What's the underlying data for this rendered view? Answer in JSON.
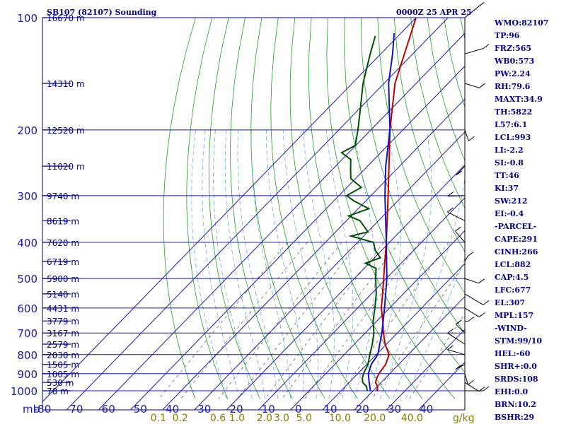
{
  "header": {
    "station": "SB107 (82107) Sounding",
    "time": "0000Z 25 APR 25"
  },
  "chart_data": {
    "type": "line",
    "title": "SB107 (82107) Sounding",
    "subtitle": "0000Z 25 APR 25",
    "xlabel": "",
    "ylabel": "mb",
    "pressure_levels": [
      100,
      200,
      300,
      400,
      500,
      600,
      700,
      800,
      900,
      1000
    ],
    "pressure_tick_labels": [
      "100",
      "200",
      "300",
      "400",
      "500",
      "600",
      "700",
      "800",
      "900",
      "1000"
    ],
    "pressure_axis_unit": "mb",
    "temperature_ticks": [
      -80,
      -70,
      -60,
      -50,
      -40,
      -30,
      -20,
      -10,
      0,
      10,
      20,
      30,
      40
    ],
    "temperature_tick_labels": [
      "-80",
      "-70",
      "-60",
      "-50",
      "-40",
      "-30",
      "-20",
      "-10",
      "0",
      "10",
      "20",
      "30",
      "40"
    ],
    "height_labels": [
      {
        "p": 100,
        "label": "16670 m"
      },
      {
        "p": 150,
        "label": "14310 m"
      },
      {
        "p": 200,
        "label": "12520 m"
      },
      {
        "p": 250,
        "label": "11020 m"
      },
      {
        "p": 300,
        "label": "9740 m"
      },
      {
        "p": 350,
        "label": "8619 m"
      },
      {
        "p": 400,
        "label": "7620 m"
      },
      {
        "p": 450,
        "label": "6719 m"
      },
      {
        "p": 500,
        "label": "5900 m"
      },
      {
        "p": 550,
        "label": "5140 m"
      },
      {
        "p": 600,
        "label": "4431 m"
      },
      {
        "p": 650,
        "label": "3779 m"
      },
      {
        "p": 700,
        "label": "3167 m"
      },
      {
        "p": 750,
        "label": "2579 m"
      },
      {
        "p": 800,
        "label": "2030 m"
      },
      {
        "p": 850,
        "label": "1505 m"
      },
      {
        "p": 900,
        "label": "1005 m"
      },
      {
        "p": 950,
        "label": "530 m"
      },
      {
        "p": 1000,
        "label": "78 m"
      }
    ],
    "mixing_ratio_labels": [
      "0.1",
      "0.2",
      "0.6",
      "1.0",
      "2.0",
      "3.0",
      "5.0",
      "10.0",
      "20.0",
      "40.0"
    ],
    "mixing_ratio_unit": "g/kg",
    "series": [
      {
        "color": "#c00000",
        "points": [
          {
            "p": 1000,
            "t": 24.5
          },
          {
            "p": 975,
            "t": 23.5
          },
          {
            "p": 950,
            "t": 21.5
          },
          {
            "p": 925,
            "t": 20.5
          },
          {
            "p": 900,
            "t": 19.8
          },
          {
            "p": 850,
            "t": 19.0
          },
          {
            "p": 800,
            "t": 17.0
          },
          {
            "p": 750,
            "t": 12.5
          },
          {
            "p": 700,
            "t": 8.5
          },
          {
            "p": 650,
            "t": 4.5
          },
          {
            "p": 600,
            "t": 0.0
          },
          {
            "p": 550,
            "t": -4.0
          },
          {
            "p": 500,
            "t": -8.5
          },
          {
            "p": 450,
            "t": -13.5
          },
          {
            "p": 400,
            "t": -19.0
          },
          {
            "p": 350,
            "t": -25.5
          },
          {
            "p": 300,
            "t": -33.0
          },
          {
            "p": 250,
            "t": -42.0
          },
          {
            "p": 200,
            "t": -53.0
          },
          {
            "p": 150,
            "t": -66.0
          },
          {
            "p": 100,
            "t": -80.0
          }
        ]
      },
      {
        "color": "#005000",
        "points": [
          {
            "p": 1000,
            "t": 21.5
          },
          {
            "p": 975,
            "t": 20.0
          },
          {
            "p": 950,
            "t": 17.5
          },
          {
            "p": 925,
            "t": 16.0
          },
          {
            "p": 900,
            "t": 15.0
          },
          {
            "p": 850,
            "t": 13.5
          },
          {
            "p": 800,
            "t": 11.0
          },
          {
            "p": 750,
            "t": 8.5
          },
          {
            "p": 700,
            "t": 5.5
          },
          {
            "p": 650,
            "t": 1.5
          },
          {
            "p": 600,
            "t": -2.0
          },
          {
            "p": 550,
            "t": -6.0
          },
          {
            "p": 500,
            "t": -11.0
          },
          {
            "p": 470,
            "t": -14.0
          },
          {
            "p": 455,
            "t": -19.0
          },
          {
            "p": 440,
            "t": -16.0
          },
          {
            "p": 420,
            "t": -20.0
          },
          {
            "p": 400,
            "t": -23.0
          },
          {
            "p": 385,
            "t": -32.0
          },
          {
            "p": 375,
            "t": -28.0
          },
          {
            "p": 350,
            "t": -34.0
          },
          {
            "p": 340,
            "t": -39.0
          },
          {
            "p": 325,
            "t": -35.0
          },
          {
            "p": 310,
            "t": -42.0
          },
          {
            "p": 300,
            "t": -46.0
          },
          {
            "p": 285,
            "t": -44.0
          },
          {
            "p": 270,
            "t": -50.0
          },
          {
            "p": 255,
            "t": -53.0
          },
          {
            "p": 240,
            "t": -56.0
          },
          {
            "p": 230,
            "t": -61.0
          },
          {
            "p": 220,
            "t": -59.0
          },
          {
            "p": 200,
            "t": -63.0
          },
          {
            "p": 175,
            "t": -69.0
          },
          {
            "p": 150,
            "t": -76.0
          },
          {
            "p": 125,
            "t": -83.0
          },
          {
            "p": 112,
            "t": -87.0
          }
        ]
      },
      {
        "color": "#1010c8",
        "points": [
          {
            "p": 1000,
            "t": 22.5
          },
          {
            "p": 950,
            "t": 19.5
          },
          {
            "p": 900,
            "t": 16.5
          },
          {
            "p": 850,
            "t": 14.5
          },
          {
            "p": 800,
            "t": 13.5
          },
          {
            "p": 700,
            "t": 8.0
          },
          {
            "p": 600,
            "t": 1.0
          },
          {
            "p": 500,
            "t": -7.5
          },
          {
            "p": 400,
            "t": -19.0
          },
          {
            "p": 300,
            "t": -34.0
          },
          {
            "p": 250,
            "t": -43.0
          },
          {
            "p": 200,
            "t": -53.0
          },
          {
            "p": 150,
            "t": -68.0
          },
          {
            "p": 125,
            "t": -76.0
          },
          {
            "p": 110,
            "t": -82.0
          }
        ]
      }
    ],
    "wind_barbs_right_side": true
  },
  "indices": [
    "WMO:82107",
    "TP:96",
    "FRZ:565",
    "WB0:573",
    "PW:2.24",
    "RH:79.6",
    "MAXT:34.9",
    "TH:5822",
    "L57:6.1",
    "LCL:993",
    "LI:-2.2",
    "SI:-0.8",
    "TT:46",
    "KI:37",
    "SW:212",
    "EI:-0.4",
    "-PARCEL-",
    "CAPE:291",
    "CINH:266",
    "LCL:882",
    "CAP:4.5",
    "LFC:677",
    "EL:307",
    "MPL:157",
    "-WIND-",
    "STM:99/10",
    "HEL:-60",
    "SHR+:0.0",
    "SRDS:108",
    "EHI:0.0",
    "BRN:10.2",
    "BSHR:29"
  ]
}
